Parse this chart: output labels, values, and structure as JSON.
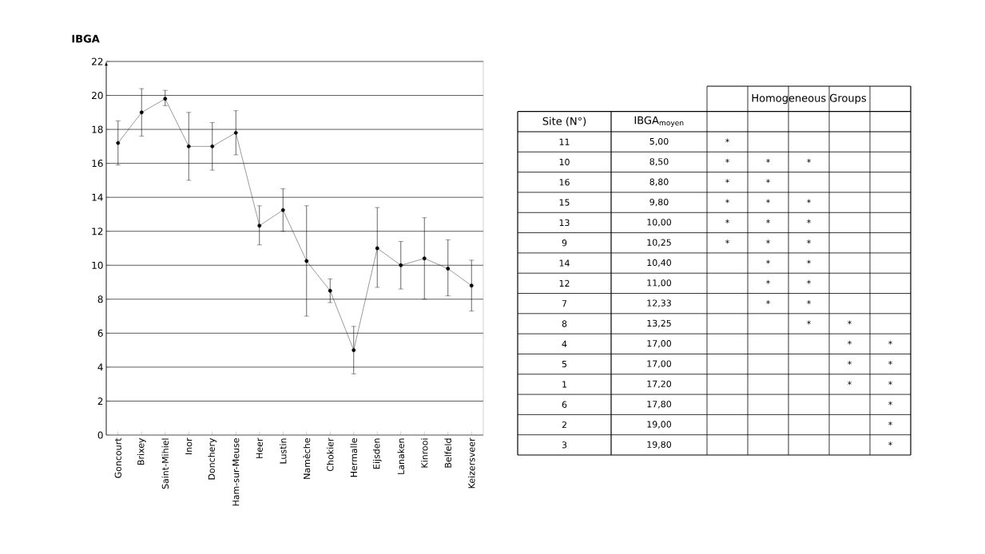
{
  "chart_data": [
    {
      "type": "line",
      "title": "IBGA",
      "categories": [
        "Goncourt",
        "Brixey",
        "Saint-Mihiel",
        "Inor",
        "Donchery",
        "Ham-sur-Meuse",
        "Heer",
        "Lustin",
        "Namèche",
        "Chokier",
        "Hermalle",
        "Eijsden",
        "Lanaken",
        "Kinrooi",
        "Belfeld",
        "Keizersveer"
      ],
      "values": [
        17.2,
        19.0,
        19.8,
        17.0,
        17.0,
        17.8,
        12.33,
        13.25,
        10.25,
        8.5,
        5.0,
        11.0,
        10.0,
        10.4,
        9.8,
        8.8
      ],
      "errors": [
        [
          15.9,
          18.5
        ],
        [
          17.6,
          20.4
        ],
        [
          19.4,
          20.3
        ],
        [
          15.0,
          19.0
        ],
        [
          15.6,
          18.4
        ],
        [
          16.5,
          19.1
        ],
        [
          11.2,
          13.5
        ],
        [
          12.0,
          14.5
        ],
        [
          7.0,
          13.5
        ],
        [
          7.8,
          9.2
        ],
        [
          3.6,
          6.4
        ],
        [
          8.7,
          13.4
        ],
        [
          8.6,
          11.4
        ],
        [
          8.0,
          12.8
        ],
        [
          8.2,
          11.5
        ],
        [
          7.3,
          10.3
        ]
      ],
      "color": "#000000",
      "ylim": [
        0,
        22
      ],
      "yticks": [
        0,
        2,
        4,
        6,
        8,
        10,
        12,
        14,
        16,
        18,
        20,
        22
      ],
      "grid": "y",
      "marker": "circle",
      "line_style": "solid"
    },
    {
      "type": "heatmap",
      "title": "Homogeneous Groups",
      "ylabel": "Site (N°)",
      "annotations": [
        "IBGA$_{moyen}$"
      ],
      "categories": [
        null,
        null,
        null,
        null,
        null
      ],
      "y_categories": [
        "11",
        "10",
        "16",
        "15",
        "13",
        "9",
        "14",
        "12",
        "7",
        "8",
        "4",
        "5",
        "1",
        "6",
        "2",
        "3"
      ],
      "y2_categories": [
        "5,00",
        "8,50",
        "8,80",
        "9,80",
        "10,00",
        "10,25",
        "10,40",
        "11,00",
        "12,33",
        "13,25",
        "17,00",
        "17,00",
        "17,20",
        "17,80",
        "19,00",
        "19,80"
      ],
      "cells": [
        [
          null,
          null,
          null,
          null,
          null
        ],
        [
          null,
          null,
          null,
          null,
          null
        ],
        [
          null,
          null,
          null,
          null,
          null
        ],
        [
          null,
          null,
          null,
          null,
          null
        ],
        [
          null,
          null,
          null,
          null,
          null
        ],
        [
          null,
          null,
          null,
          null,
          null
        ],
        [
          null,
          null,
          null,
          null,
          null
        ],
        [
          null,
          null,
          null,
          null,
          null
        ],
        [
          null,
          null,
          null,
          null,
          null
        ],
        [
          null,
          null,
          null,
          null,
          null
        ],
        [
          null,
          null,
          null,
          null,
          null
        ],
        [
          null,
          null,
          null,
          null,
          null
        ],
        [
          null,
          null,
          null,
          null,
          null
        ],
        [
          null,
          null,
          null,
          null,
          null
        ],
        [
          null,
          null,
          null,
          null,
          null
        ],
        [
          null,
          null,
          null,
          null,
          null
        ]
      ],
      "cell_labels": [
        [
          "*",
          null,
          null,
          null,
          null
        ],
        [
          "*",
          "*",
          "*",
          null,
          null
        ],
        [
          "*",
          "*",
          null,
          null,
          null
        ],
        [
          "*",
          "*",
          "*",
          null,
          null
        ],
        [
          "*",
          "*",
          "*",
          null,
          null
        ],
        [
          "*",
          "*",
          "*",
          null,
          null
        ],
        [
          null,
          "*",
          "*",
          null,
          null
        ],
        [
          null,
          "*",
          "*",
          null,
          null
        ],
        [
          null,
          "*",
          "*",
          null,
          null
        ],
        [
          null,
          null,
          "*",
          "*",
          null
        ],
        [
          null,
          null,
          null,
          "*",
          "*"
        ],
        [
          null,
          null,
          null,
          "*",
          "*"
        ],
        [
          null,
          null,
          null,
          "*",
          "*"
        ],
        [
          null,
          null,
          null,
          null,
          "*"
        ],
        [
          null,
          null,
          null,
          null,
          "*"
        ],
        [
          null,
          null,
          null,
          null,
          "*"
        ]
      ]
    }
  ]
}
